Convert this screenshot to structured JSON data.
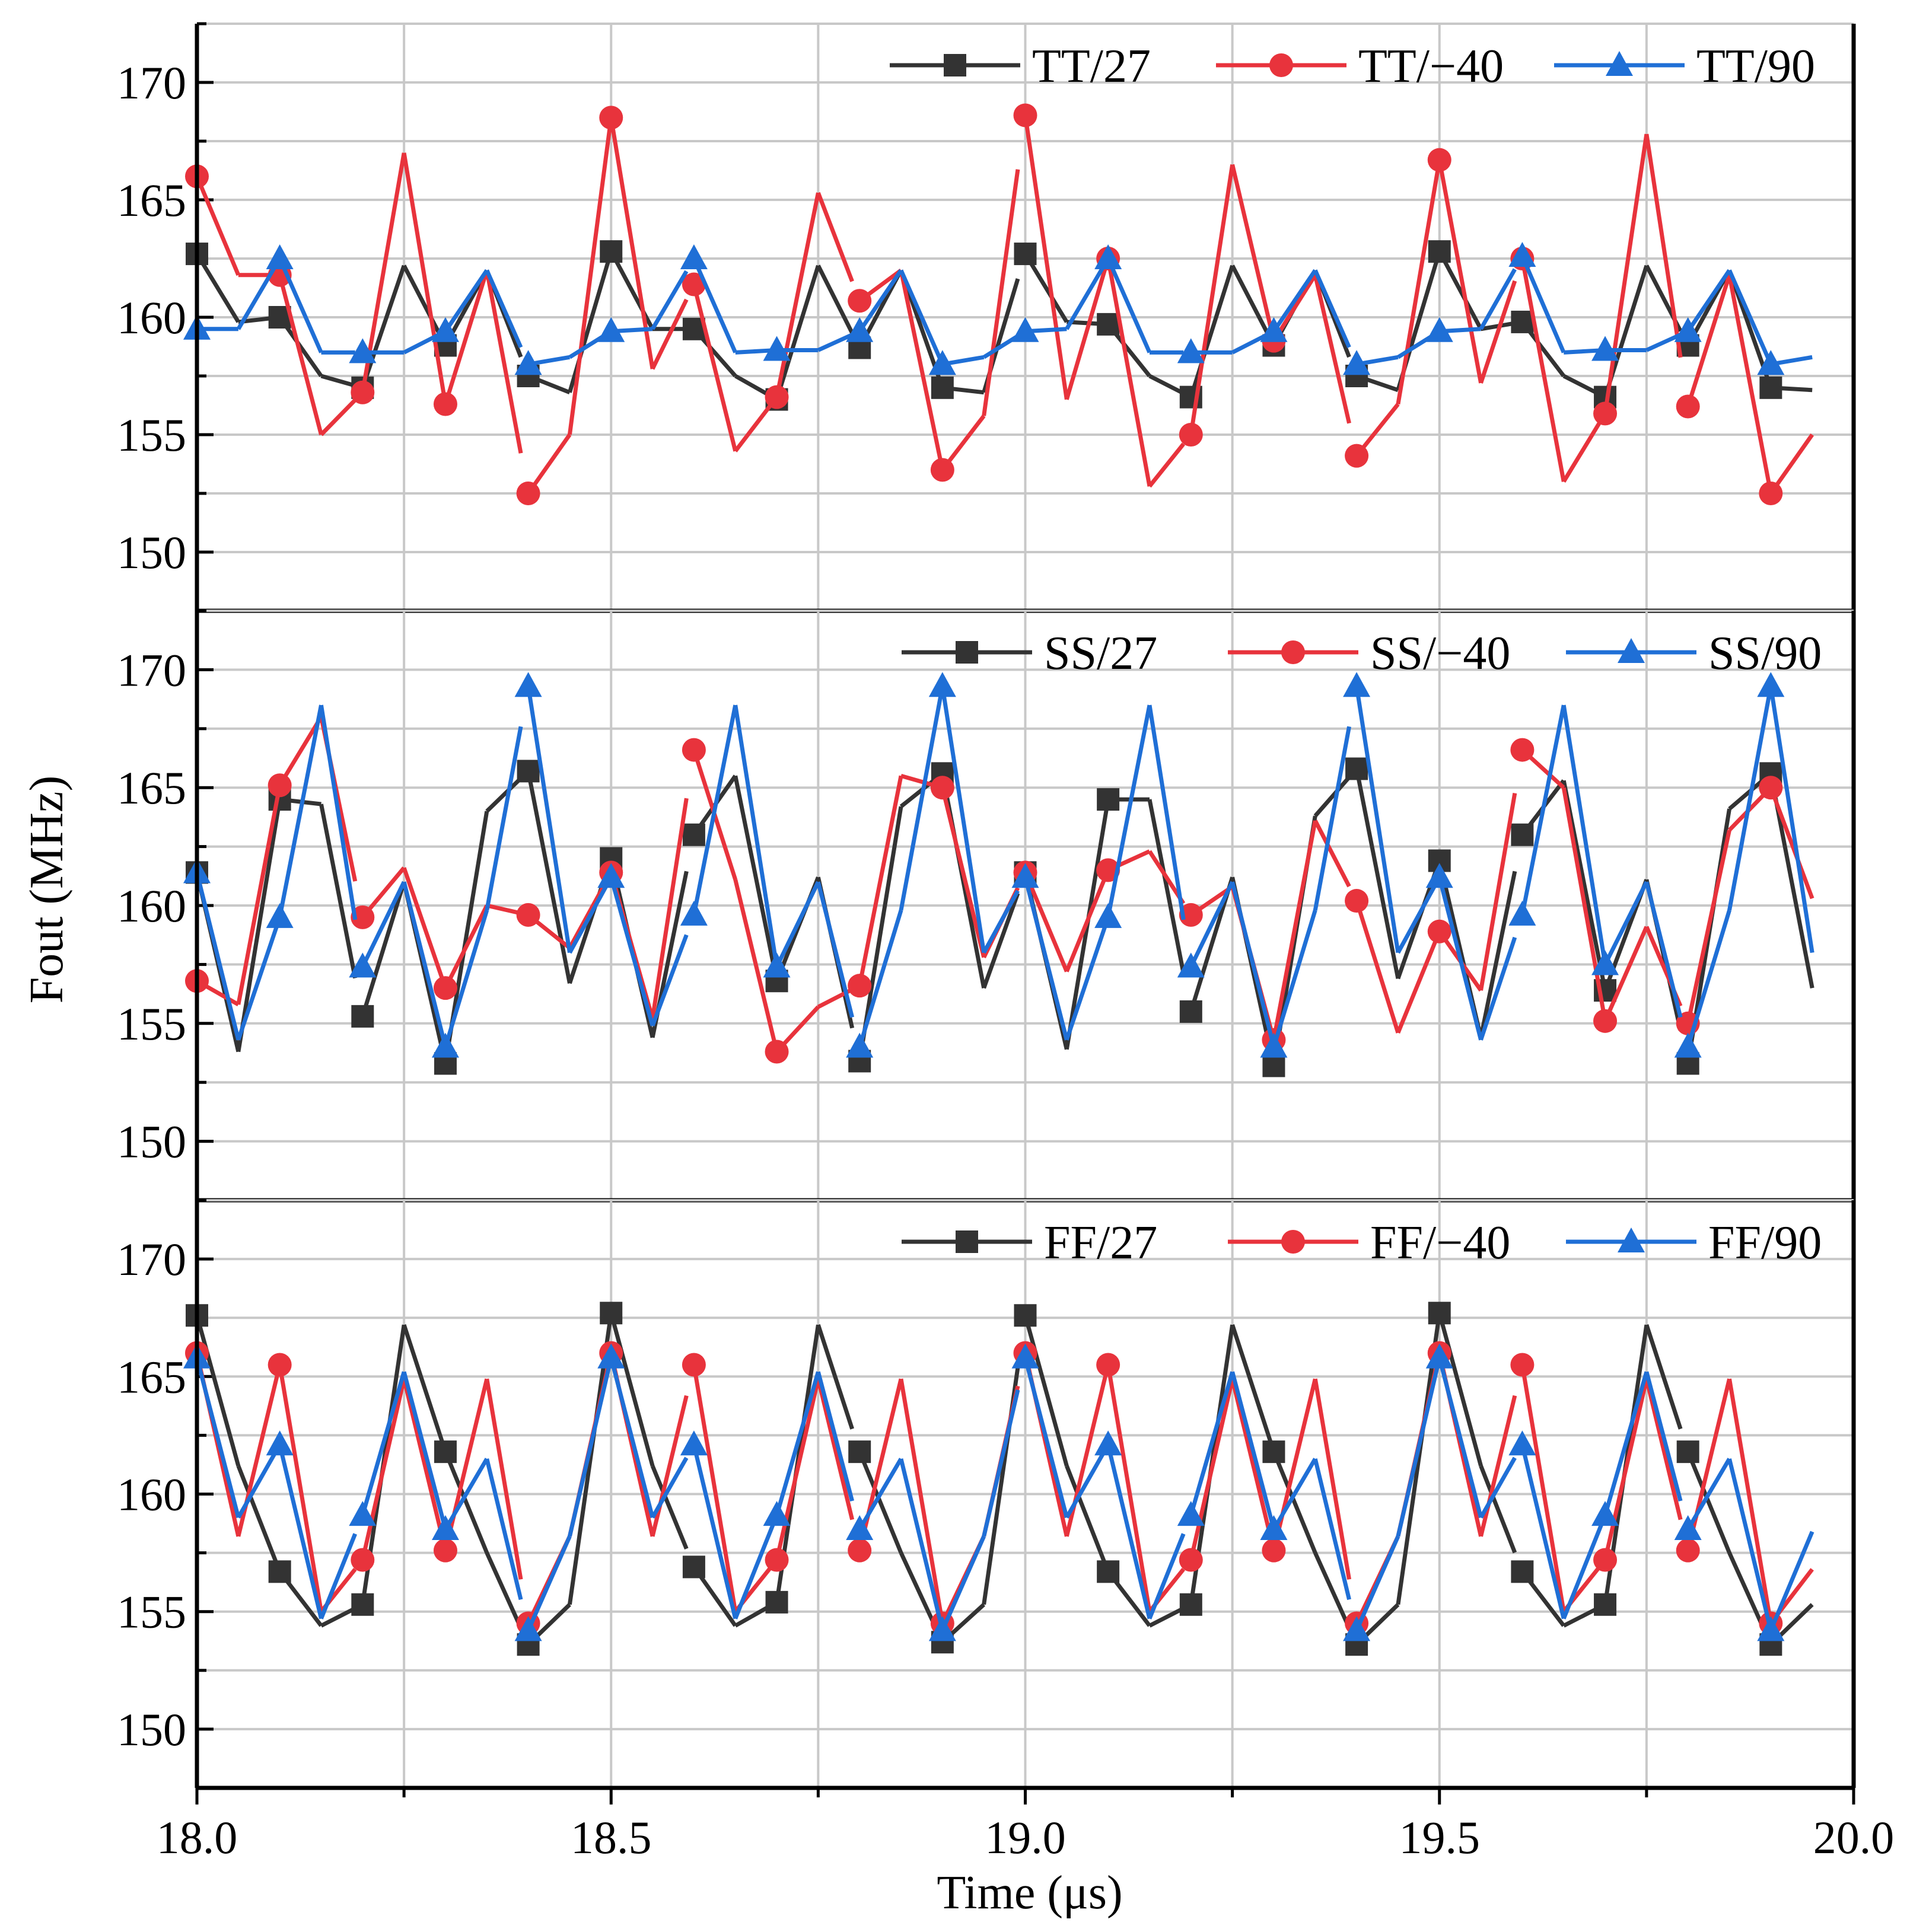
{
  "colors": {
    "black": "#333333",
    "red": "#e8333c",
    "blue": "#1f6fd6"
  },
  "chart_data": [
    {
      "type": "line",
      "panel": "top",
      "x": [
        18.0,
        18.05,
        18.1,
        18.15,
        18.2,
        18.25,
        18.3,
        18.35,
        18.4,
        18.45,
        18.5,
        18.55,
        18.6,
        18.65,
        18.7,
        18.75,
        18.8,
        18.85,
        18.9,
        18.95,
        19.0,
        19.05,
        19.1,
        19.15,
        19.2,
        19.25,
        19.3,
        19.35,
        19.4,
        19.45,
        19.5,
        19.55,
        19.6,
        19.65,
        19.7,
        19.75,
        19.8,
        19.85,
        19.9,
        19.95
      ],
      "xlim": [
        18.0,
        20.0
      ],
      "ylim": [
        147.5,
        172.5
      ],
      "yticks": [
        150,
        155,
        160,
        165,
        170
      ],
      "series": [
        {
          "name": "TT/27",
          "color": "#333333",
          "marker": "square",
          "markevery": 2,
          "values": [
            162.7,
            159.8,
            160.0,
            157.5,
            157.0,
            162.2,
            158.8,
            162.0,
            157.5,
            156.8,
            162.8,
            159.5,
            159.5,
            157.5,
            156.5,
            162.2,
            158.7,
            162.0,
            157.0,
            156.8,
            162.7,
            159.8,
            159.7,
            157.5,
            156.6,
            162.2,
            158.8,
            162.0,
            157.5,
            156.9,
            162.8,
            159.5,
            159.8,
            157.5,
            156.6,
            162.2,
            158.8,
            162.0,
            157.0,
            156.9
          ]
        },
        {
          "name": "TT/−40",
          "color": "#e8333c",
          "marker": "circle",
          "markevery": 2,
          "values": [
            166.0,
            161.8,
            161.8,
            155.0,
            156.8,
            167.0,
            156.3,
            162.0,
            152.5,
            155.0,
            168.5,
            157.8,
            161.4,
            154.3,
            156.6,
            165.3,
            160.7,
            162.0,
            153.5,
            155.8,
            168.6,
            156.5,
            162.5,
            152.8,
            155.0,
            166.5,
            159.0,
            161.8,
            154.1,
            156.3,
            166.7,
            157.2,
            162.5,
            153.0,
            155.9,
            167.8,
            156.2,
            161.8,
            152.5,
            155.0
          ]
        },
        {
          "name": "TT/90",
          "color": "#1f6fd6",
          "marker": "triangle",
          "markevery": 2,
          "values": [
            159.5,
            159.5,
            162.5,
            158.5,
            158.5,
            158.5,
            159.4,
            162.0,
            158.0,
            158.3,
            159.4,
            159.5,
            162.5,
            158.5,
            158.6,
            158.6,
            159.4,
            162.0,
            158.0,
            158.3,
            159.4,
            159.5,
            162.5,
            158.5,
            158.5,
            158.5,
            159.4,
            162.0,
            158.0,
            158.3,
            159.4,
            159.5,
            162.6,
            158.5,
            158.6,
            158.6,
            159.4,
            162.0,
            158.0,
            158.3
          ]
        }
      ]
    },
    {
      "type": "line",
      "panel": "middle",
      "x": [
        18.0,
        18.05,
        18.1,
        18.15,
        18.2,
        18.25,
        18.3,
        18.35,
        18.4,
        18.45,
        18.5,
        18.55,
        18.6,
        18.65,
        18.7,
        18.75,
        18.8,
        18.85,
        18.9,
        18.95,
        19.0,
        19.05,
        19.1,
        19.15,
        19.2,
        19.25,
        19.3,
        19.35,
        19.4,
        19.45,
        19.5,
        19.55,
        19.6,
        19.65,
        19.7,
        19.75,
        19.8,
        19.85,
        19.9,
        19.95
      ],
      "xlim": [
        18.0,
        20.0
      ],
      "ylim": [
        147.5,
        172.5
      ],
      "yticks": [
        150,
        155,
        160,
        165,
        170
      ],
      "series": [
        {
          "name": "SS/27",
          "color": "#333333",
          "marker": "square",
          "markevery": 2,
          "values": [
            161.4,
            153.8,
            164.5,
            164.3,
            155.3,
            161.0,
            153.3,
            164.0,
            165.7,
            156.7,
            162.0,
            154.4,
            163.0,
            165.5,
            156.8,
            161.2,
            153.4,
            164.2,
            165.6,
            156.5,
            161.4,
            153.9,
            164.5,
            164.5,
            155.5,
            161.2,
            153.2,
            163.8,
            165.8,
            156.9,
            161.9,
            154.4,
            163.0,
            165.3,
            156.4,
            161.1,
            153.3,
            164.1,
            165.6,
            156.5
          ]
        },
        {
          "name": "SS/−40",
          "color": "#e8333c",
          "marker": "circle",
          "markevery": 2,
          "values": [
            156.8,
            155.8,
            165.1,
            168.0,
            159.5,
            161.6,
            156.5,
            160.0,
            159.6,
            158.2,
            161.4,
            155.2,
            166.6,
            161.1,
            153.8,
            155.7,
            156.6,
            165.5,
            165.0,
            157.8,
            161.4,
            157.2,
            161.5,
            162.3,
            159.6,
            160.8,
            154.3,
            163.6,
            160.2,
            154.6,
            158.9,
            156.4,
            166.6,
            165.0,
            155.1,
            159.1,
            155.0,
            163.2,
            165.0,
            160.3
          ]
        },
        {
          "name": "SS/90",
          "color": "#1f6fd6",
          "marker": "triangle",
          "markevery": 2,
          "values": [
            161.4,
            154.3,
            159.5,
            168.5,
            157.4,
            161.0,
            154.0,
            159.8,
            169.3,
            158.0,
            161.2,
            154.9,
            159.6,
            168.5,
            157.4,
            161.0,
            154.0,
            159.8,
            169.3,
            158.0,
            161.2,
            154.3,
            159.5,
            168.5,
            157.4,
            161.0,
            154.0,
            159.8,
            169.3,
            158.0,
            161.2,
            154.3,
            159.6,
            168.5,
            157.5,
            161.0,
            154.0,
            159.8,
            169.3,
            158.0
          ]
        }
      ]
    },
    {
      "type": "line",
      "panel": "bottom",
      "x": [
        18.0,
        18.05,
        18.1,
        18.15,
        18.2,
        18.25,
        18.3,
        18.35,
        18.4,
        18.45,
        18.5,
        18.55,
        18.6,
        18.65,
        18.7,
        18.75,
        18.8,
        18.85,
        18.9,
        18.95,
        19.0,
        19.05,
        19.1,
        19.15,
        19.2,
        19.25,
        19.3,
        19.35,
        19.4,
        19.45,
        19.5,
        19.55,
        19.6,
        19.65,
        19.7,
        19.75,
        19.8,
        19.85,
        19.9,
        19.95
      ],
      "xlim": [
        18.0,
        20.0
      ],
      "ylim": [
        147.5,
        172.5
      ],
      "yticks": [
        150,
        155,
        160,
        165,
        170
      ],
      "series": [
        {
          "name": "FF/27",
          "color": "#333333",
          "marker": "square",
          "markevery": 2,
          "values": [
            167.6,
            161.2,
            156.7,
            154.4,
            155.3,
            167.2,
            161.8,
            157.5,
            153.6,
            155.3,
            167.7,
            161.2,
            156.9,
            154.4,
            155.4,
            167.2,
            161.8,
            157.5,
            153.7,
            155.3,
            167.6,
            161.2,
            156.7,
            154.4,
            155.3,
            167.2,
            161.8,
            157.5,
            153.6,
            155.3,
            167.7,
            161.2,
            156.7,
            154.4,
            155.3,
            167.2,
            161.8,
            157.5,
            153.6,
            155.3
          ]
        },
        {
          "name": "FF/−40",
          "color": "#e8333c",
          "marker": "circle",
          "markevery": 2,
          "values": [
            166.0,
            158.2,
            165.5,
            155.0,
            157.2,
            164.9,
            157.6,
            164.9,
            154.5,
            158.2,
            166.0,
            158.2,
            165.5,
            155.0,
            157.2,
            164.9,
            157.6,
            164.9,
            154.5,
            158.2,
            166.0,
            158.2,
            165.5,
            155.0,
            157.2,
            164.9,
            157.6,
            164.9,
            154.5,
            158.2,
            166.0,
            158.2,
            165.5,
            155.0,
            157.2,
            164.9,
            157.6,
            164.9,
            154.5,
            156.8
          ]
        },
        {
          "name": "FF/90",
          "color": "#1f6fd6",
          "marker": "triangle",
          "markevery": 2,
          "values": [
            165.8,
            159.0,
            162.1,
            154.7,
            159.1,
            165.2,
            158.5,
            161.5,
            154.2,
            158.2,
            165.8,
            159.0,
            162.1,
            154.7,
            159.1,
            165.2,
            158.5,
            161.5,
            154.2,
            158.2,
            165.8,
            159.0,
            162.1,
            154.7,
            159.1,
            165.2,
            158.5,
            161.5,
            154.2,
            158.2,
            165.8,
            159.0,
            162.1,
            154.7,
            159.1,
            165.2,
            158.5,
            161.5,
            154.2,
            158.4
          ]
        }
      ]
    }
  ],
  "axes": {
    "xlabel": "Time (μs)",
    "ylabel": "Fout (MHz)",
    "xticks": [
      18.0,
      18.5,
      19.0,
      19.5,
      20.0
    ],
    "xtick_labels": [
      "18.0",
      "18.5",
      "19.0",
      "19.5",
      "20.0"
    ],
    "ytick_labels": [
      "150",
      "155",
      "160",
      "165",
      "170"
    ]
  }
}
